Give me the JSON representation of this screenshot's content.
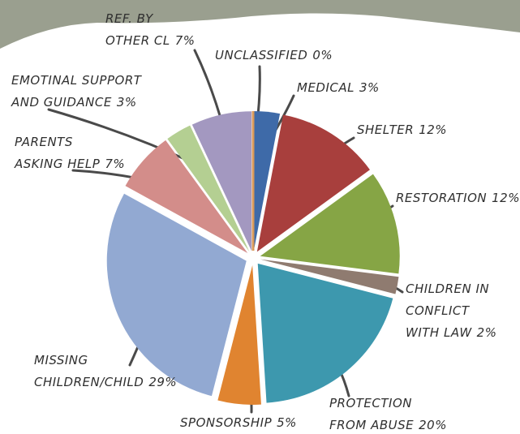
{
  "chart_data": {
    "type": "pie",
    "categories": [
      "MEDICAL",
      "SHELTER",
      "RESTORATION",
      "CHILDREN IN\nCONFLICT\nWITH LAW",
      "PROTECTION\nFROM ABUSE",
      "SPONSORSHIP",
      "MISSING\nCHILDREN/CHILD",
      "PARENTS\nASKING HELP",
      "EMOTINAL SUPPORT\nAND GUIDANCE",
      "REF. BY\nOTHER CL",
      "UNCLASSIFIED"
    ],
    "values": [
      3,
      12,
      12,
      2,
      20,
      5,
      29,
      7,
      3,
      7,
      0
    ],
    "value_labels": [
      "3%",
      "12%",
      "12%",
      "2%",
      "20%",
      "5%",
      "29%",
      "7%",
      "3%",
      "7%",
      "0%"
    ],
    "colors": [
      "#3e6aa8",
      "#a83f3d",
      "#86a545",
      "#8f7b70",
      "#3d98ae",
      "#e08430",
      "#92a9d2",
      "#d38d8a",
      "#b4cf92",
      "#a398c0",
      "#d99a5a"
    ]
  }
}
